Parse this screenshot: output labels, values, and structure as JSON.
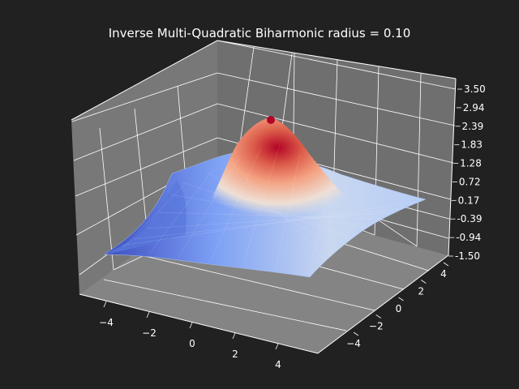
{
  "chart_data": {
    "type": "surface",
    "title": "Inverse Multi-Quadratic Biharmonic radius = 0.10",
    "xlabel": "",
    "ylabel": "",
    "zlabel": "",
    "x_ticks": [
      "−4",
      "−2",
      "0",
      "2",
      "4"
    ],
    "y_ticks": [
      "−4",
      "−2",
      "0",
      "2",
      "4"
    ],
    "z_ticks": [
      "-1.50",
      "-0.94",
      "-0.39",
      "0.17",
      "0.72",
      "1.28",
      "1.83",
      "2.39",
      "2.94",
      "3.50"
    ],
    "xlim": [
      -5,
      5
    ],
    "ylim": [
      -5,
      5
    ],
    "zlim": [
      -1.5,
      3.5
    ],
    "colormap": "coolwarm",
    "grid": true,
    "surface_peak": {
      "x": 0.3,
      "y": 1.2,
      "z": 3.2
    },
    "surface_min": {
      "x": -4.5,
      "y": -3.5,
      "z": -1.5
    }
  },
  "colors": {
    "background": "#212121",
    "pane": "#808080",
    "grid": "#ffffff",
    "text": "#ffffff",
    "cmap_low": "#3b4cc0",
    "cmap_mid": "#dddddd",
    "cmap_high": "#b40426"
  }
}
